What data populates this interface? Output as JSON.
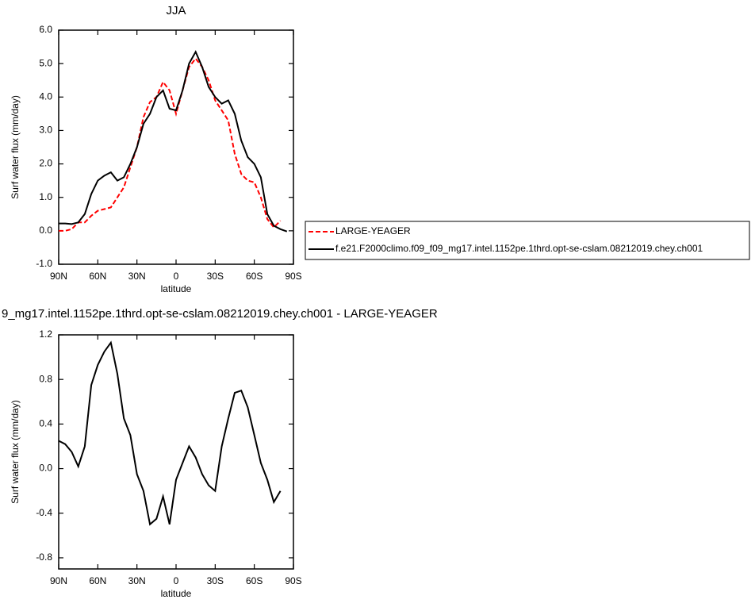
{
  "chart_data": [
    {
      "type": "line",
      "title": "JJA",
      "xlabel": "latitude",
      "ylabel": "Surf water flux (mm/day)",
      "x": [
        90,
        85,
        80,
        75,
        70,
        65,
        60,
        55,
        50,
        45,
        40,
        35,
        30,
        25,
        20,
        15,
        10,
        5,
        0,
        -5,
        -10,
        -15,
        -20,
        -25,
        -30,
        -35,
        -40,
        -45,
        -50,
        -55,
        -60,
        -65,
        -70,
        -75,
        -80,
        -85
      ],
      "series": [
        {
          "name": "LARGE-YEAGER",
          "color": "#ff0000",
          "linestyle": "dashed",
          "values": [
            0.0,
            0.0,
            0.05,
            0.25,
            0.25,
            0.45,
            0.6,
            0.65,
            0.7,
            1.0,
            1.3,
            1.9,
            2.5,
            3.4,
            3.85,
            4.0,
            4.45,
            4.2,
            3.5,
            4.2,
            4.9,
            5.15,
            4.9,
            4.5,
            3.9,
            3.6,
            3.3,
            2.3,
            1.7,
            1.5,
            1.45,
            1.0,
            0.35,
            0.1,
            0.3,
            null
          ]
        },
        {
          "name": "f.e21.F2000climo.f09_f09_mg17.intel.1152pe.1thrd.opt-se-cslam.08212019.chey.ch001",
          "color": "#000000",
          "linestyle": "solid",
          "values": [
            0.22,
            0.22,
            0.2,
            0.25,
            0.5,
            1.1,
            1.5,
            1.65,
            1.75,
            1.5,
            1.6,
            2.0,
            2.5,
            3.2,
            3.5,
            4.0,
            4.2,
            3.65,
            3.6,
            4.2,
            5.0,
            5.35,
            4.9,
            4.3,
            4.0,
            3.8,
            3.9,
            3.5,
            2.7,
            2.2,
            2.0,
            1.6,
            0.5,
            0.15,
            0.05,
            -0.02
          ]
        }
      ],
      "xlim": [
        90,
        -90
      ],
      "xticks": [
        {
          "value": 90,
          "label": "90N"
        },
        {
          "value": 60,
          "label": "60N"
        },
        {
          "value": 30,
          "label": "30N"
        },
        0,
        {
          "value": -30,
          "label": "30S"
        },
        {
          "value": -60,
          "label": "60S"
        },
        {
          "value": -90,
          "label": "90S"
        }
      ],
      "ylim": [
        -1.0,
        6.0
      ],
      "yticks": [
        {
          "value": -1,
          "label": "-1.0"
        },
        {
          "value": 0,
          "label": "0.0"
        },
        {
          "value": 1,
          "label": "1.0"
        },
        {
          "value": 2,
          "label": "2.0"
        },
        {
          "value": 3,
          "label": "3.0"
        },
        {
          "value": 4,
          "label": "4.0"
        },
        {
          "value": 5,
          "label": "5.0"
        },
        {
          "value": 6,
          "label": "6.0"
        }
      ],
      "legend": "right"
    },
    {
      "type": "line",
      "title": "9_mg17.intel.1152pe.1thrd.opt-se-cslam.08212019.chey.ch001 - LARGE-YEAGER",
      "xlabel": "latitude",
      "ylabel": "Surf water flux (mm/day)",
      "x": [
        90,
        85,
        80,
        75,
        70,
        65,
        60,
        55,
        50,
        45,
        40,
        35,
        30,
        25,
        20,
        15,
        10,
        5,
        0,
        -5,
        -10,
        -15,
        -20,
        -25,
        -30,
        -35,
        -40,
        -45,
        -50,
        -55,
        -60,
        -65,
        -70,
        -75,
        -80,
        -85
      ],
      "series": [
        {
          "color": "#000000",
          "linestyle": "solid",
          "values": [
            0.25,
            0.22,
            0.15,
            0.02,
            0.2,
            0.75,
            0.93,
            1.05,
            1.13,
            0.85,
            0.45,
            0.3,
            -0.05,
            -0.2,
            -0.5,
            -0.45,
            -0.25,
            -0.5,
            -0.1,
            0.05,
            0.2,
            0.1,
            -0.05,
            -0.15,
            -0.2,
            0.2,
            0.45,
            0.68,
            0.7,
            0.55,
            0.3,
            0.05,
            -0.1,
            -0.3,
            -0.2,
            null
          ]
        }
      ],
      "xlim": [
        90,
        -90
      ],
      "xticks": [
        {
          "value": 90,
          "label": "90N"
        },
        {
          "value": 60,
          "label": "60N"
        },
        {
          "value": 30,
          "label": "30N"
        },
        0,
        {
          "value": -30,
          "label": "30S"
        },
        {
          "value": -60,
          "label": "60S"
        },
        {
          "value": -90,
          "label": "90S"
        }
      ],
      "ylim": [
        -0.9,
        1.2
      ],
      "yticks": [
        -0.8,
        -0.4,
        {
          "value": 0,
          "label": "0.0"
        },
        0.4,
        0.8,
        1.2
      ]
    }
  ]
}
